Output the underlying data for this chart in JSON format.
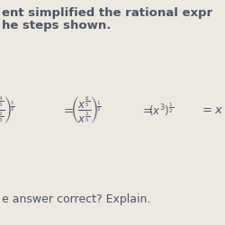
{
  "title_line1": "ent simplified the rational expr",
  "title_line2": "he steps shown.",
  "footer": "e answer correct? Explain.",
  "bg_color": "#ede9e0",
  "text_color": "#4a5568",
  "title_fontsize": 9.5,
  "footer_fontsize": 9,
  "math_fontsize": 8.5,
  "figsize": [
    2.5,
    2.5
  ],
  "dpi": 100
}
